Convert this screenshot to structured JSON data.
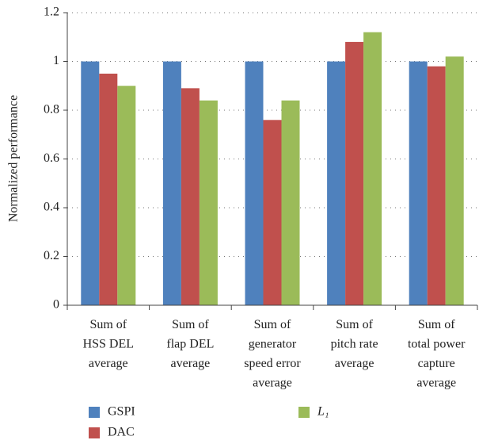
{
  "chart_data": {
    "type": "bar",
    "y_label": "Normalized performance",
    "categories": [
      "Sum of\nHSS DEL\naverage",
      "Sum of\nflap DEL\naverage",
      "Sum of\ngenerator\nspeed error\naverage",
      "Sum of\npitch rate\naverage",
      "Sum of\ntotal power\ncapture\naverage"
    ],
    "series": [
      {
        "name": "GSPI",
        "color": "#4f81bd",
        "values": [
          1,
          1,
          1,
          1,
          1
        ]
      },
      {
        "name": "DAC",
        "color": "#c0504d",
        "values": [
          0.95,
          0.89,
          0.76,
          1.08,
          0.98
        ]
      },
      {
        "name": "L₁",
        "color": "#9bbb59",
        "values": [
          0.9,
          0.84,
          0.84,
          1.12,
          1.02
        ]
      }
    ],
    "ylim": [
      0,
      1.2
    ],
    "yticks": [
      0,
      {
        "value": 0.2,
        "label": "0.2"
      },
      {
        "value": 0.4,
        "label": "0.4"
      },
      {
        "value": 0.6,
        "label": "0.6"
      },
      {
        "value": 0.8,
        "label": "0.8"
      },
      1,
      {
        "value": 1.2,
        "label": "1.2"
      }
    ],
    "grid": true
  }
}
